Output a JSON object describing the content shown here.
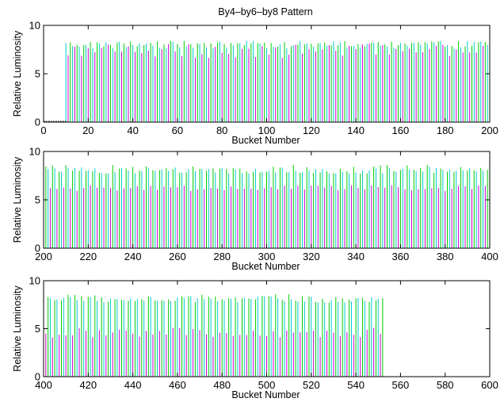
{
  "figure": {
    "title": "By4–by6–by8 Pattern"
  },
  "chart_data": [
    {
      "type": "bar",
      "title": "By4–by6–by8 Pattern",
      "xlabel": "Bucket Number",
      "ylabel": "Relative Luminosity",
      "xlim": [
        0,
        200
      ],
      "ylim": [
        0,
        10
      ],
      "xticks": [
        0,
        20,
        40,
        60,
        80,
        100,
        120,
        140,
        160,
        180,
        200
      ],
      "yticks": [
        0,
        5,
        10
      ],
      "grid": false,
      "bucket_range": [
        10,
        200
      ],
      "notes_visible": "dotted baseline from 0 to 10",
      "series": [
        {
          "color": "#00cc00",
          "approx_values_range": [
            7.8,
            8.4
          ]
        },
        {
          "color": "#00cccc",
          "approx_values_range": [
            7.6,
            8.4
          ]
        },
        {
          "color": "#cc00cc",
          "approx_values_range": [
            6.6,
            8.1
          ]
        }
      ]
    },
    {
      "type": "bar",
      "title": "",
      "xlabel": "Bucket Number",
      "ylabel": "Relative Luminosity",
      "xlim": [
        200,
        400
      ],
      "ylim": [
        0,
        10
      ],
      "xticks": [
        200,
        220,
        240,
        260,
        280,
        300,
        320,
        340,
        360,
        380,
        400
      ],
      "yticks": [
        0,
        5,
        10
      ],
      "grid": false,
      "bucket_range": [
        200,
        400
      ],
      "series": [
        {
          "color": "#00cc00",
          "approx_values_range": [
            7.7,
            8.6
          ]
        },
        {
          "color": "#00cccc",
          "approx_values_range": [
            7.7,
            8.4
          ]
        },
        {
          "color": "#cc00cc",
          "approx_values_range": [
            5.9,
            6.5
          ]
        }
      ]
    },
    {
      "type": "bar",
      "title": "",
      "xlabel": "Bucket Number",
      "ylabel": "Relative Luminosity",
      "xlim": [
        400,
        600
      ],
      "ylim": [
        0,
        10
      ],
      "xticks": [
        400,
        420,
        440,
        460,
        480,
        500,
        520,
        540,
        560,
        580,
        600
      ],
      "yticks": [
        0,
        5,
        10
      ],
      "grid": false,
      "bucket_range": [
        400,
        552
      ],
      "series": [
        {
          "color": "#00cc00",
          "approx_values_range": [
            7.7,
            8.6
          ]
        },
        {
          "color": "#00cccc",
          "approx_values_range": [
            7.7,
            8.4
          ]
        },
        {
          "color": "#cc00cc",
          "approx_values_range": [
            4.0,
            5.1
          ]
        }
      ]
    }
  ]
}
